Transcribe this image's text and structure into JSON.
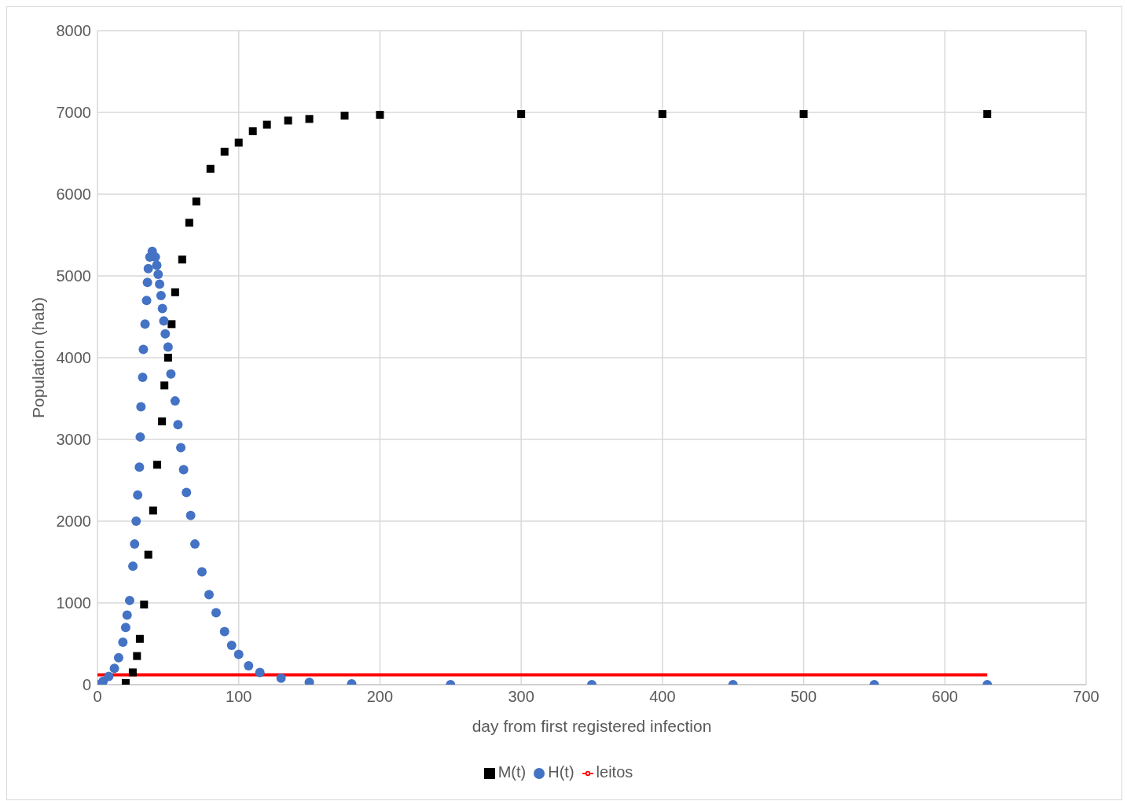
{
  "chart_data": {
    "type": "scatter",
    "xlabel": "day from first registered infection",
    "ylabel": "Population (hab)",
    "xlim": [
      0,
      700
    ],
    "xticks": [
      0,
      100,
      200,
      300,
      400,
      500,
      600,
      700
    ],
    "ylim": [
      0,
      8000
    ],
    "yticks": [
      0,
      1000,
      2000,
      3000,
      4000,
      5000,
      6000,
      7000,
      8000
    ],
    "grid": true,
    "legend": "bottom",
    "series": [
      {
        "name": "M(t)",
        "color": "#000000",
        "marker": "square",
        "x": [
          20,
          25,
          28,
          30,
          33,
          36,
          39.4,
          42.3,
          45.7,
          47.4,
          50,
          52.5,
          55,
          60,
          65,
          70,
          80,
          90,
          100,
          110,
          120,
          135,
          150,
          175,
          200,
          300,
          400,
          500,
          630
        ],
        "values": [
          20,
          150,
          350,
          560,
          980,
          1590,
          2130,
          2690,
          3220,
          3660,
          4000,
          4410,
          4800,
          5200,
          5650,
          5910,
          6310,
          6520,
          6630,
          6770,
          6850,
          6900,
          6920,
          6960,
          6970,
          6980,
          6980,
          6980,
          6980
        ]
      },
      {
        "name": "H(t)",
        "color": "#4472c4",
        "marker": "circle",
        "x": [
          0,
          4,
          8,
          12,
          15,
          18,
          20,
          21,
          22.8,
          25.1,
          26.3,
          27.4,
          28.5,
          29.7,
          30.3,
          30.8,
          32,
          32.5,
          33.7,
          34.8,
          35.4,
          36,
          37.1,
          38.8,
          41,
          42,
          43,
          44,
          45,
          46,
          47,
          48,
          50,
          52,
          55,
          57,
          59,
          61,
          63,
          66,
          69,
          74,
          79,
          84,
          90,
          95,
          100,
          107,
          115,
          130,
          150,
          180,
          250,
          350,
          450,
          550,
          630
        ],
        "values": [
          0,
          40,
          100,
          200,
          330,
          520,
          700,
          850,
          1030,
          1450,
          1720,
          2000,
          2320,
          2660,
          3030,
          3400,
          3760,
          4100,
          4410,
          4700,
          4920,
          5090,
          5230,
          5300,
          5230,
          5130,
          5020,
          4900,
          4760,
          4600,
          4450,
          4290,
          4130,
          3800,
          3470,
          3180,
          2900,
          2630,
          2350,
          2070,
          1720,
          1380,
          1100,
          880,
          650,
          480,
          370,
          230,
          150,
          80,
          30,
          10,
          0,
          0,
          0,
          0,
          0
        ]
      },
      {
        "name": "leitos",
        "type": "line",
        "color": "#ff0000",
        "marker": "none",
        "x": [
          0,
          630
        ],
        "values": [
          120,
          120
        ]
      }
    ]
  }
}
